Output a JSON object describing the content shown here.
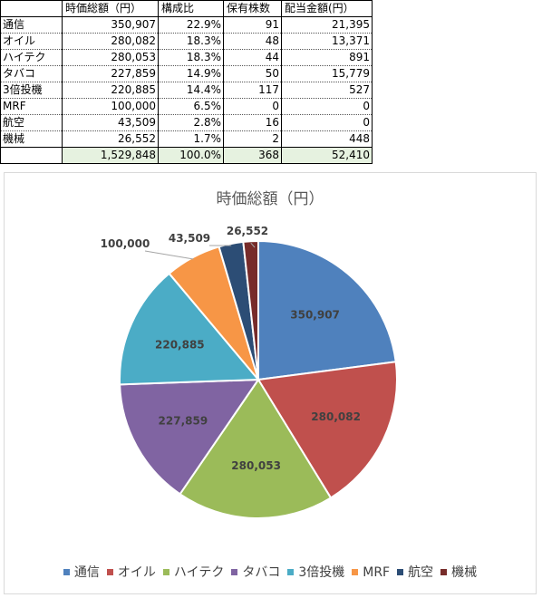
{
  "table": {
    "headers": [
      "",
      "時価総額（円）",
      "構成比",
      "保有株数",
      "配当金額(円）"
    ],
    "rows": [
      {
        "name": "通信",
        "value": "350,907",
        "ratio": "22.9%",
        "shares": "91",
        "dividend": "21,395"
      },
      {
        "name": "オイル",
        "value": "280,082",
        "ratio": "18.3%",
        "shares": "48",
        "dividend": "13,371"
      },
      {
        "name": "ハイテク",
        "value": "280,053",
        "ratio": "18.3%",
        "shares": "44",
        "dividend": "891"
      },
      {
        "name": "タバコ",
        "value": "227,859",
        "ratio": "14.9%",
        "shares": "50",
        "dividend": "15,779"
      },
      {
        "name": "3倍投機",
        "value": "220,885",
        "ratio": "14.4%",
        "shares": "117",
        "dividend": "527"
      },
      {
        "name": "MRF",
        "value": "100,000",
        "ratio": "6.5%",
        "shares": "0",
        "dividend": "0"
      },
      {
        "name": "航空",
        "value": "43,509",
        "ratio": "2.8%",
        "shares": "16",
        "dividend": "0"
      },
      {
        "name": "機械",
        "value": "26,552",
        "ratio": "1.7%",
        "shares": "2",
        "dividend": "448"
      }
    ],
    "total": {
      "name": "",
      "value": "1,529,848",
      "ratio": "100.0%",
      "shares": "368",
      "dividend": "52,410"
    }
  },
  "chart_data": {
    "type": "pie",
    "title": "時価総額（円）",
    "categories": [
      "通信",
      "オイル",
      "ハイテク",
      "タバコ",
      "3倍投機",
      "MRF",
      "航空",
      "機械"
    ],
    "values": [
      350907,
      280082,
      280053,
      227859,
      220885,
      100000,
      43509,
      26552
    ],
    "data_labels": [
      "350,907",
      "280,082",
      "280,053",
      "227,859",
      "220,885",
      "100,000",
      "43,509",
      "26,552"
    ],
    "colors": [
      "#4f81bd",
      "#c0504d",
      "#9bbb59",
      "#8064a2",
      "#4bacc6",
      "#f79646",
      "#2c4d75",
      "#772c2a"
    ],
    "legend": "bottom"
  }
}
